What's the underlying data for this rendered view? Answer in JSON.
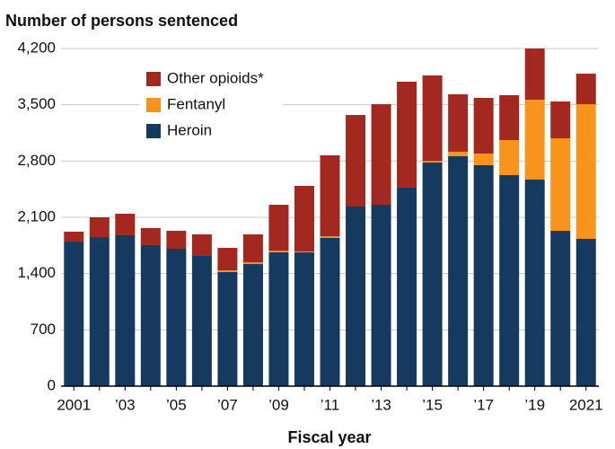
{
  "chart_data": {
    "type": "stacked_bar",
    "title": "Number of persons sentenced",
    "x_label": "Fiscal year",
    "categories": [
      "2001",
      null,
      "’03",
      null,
      "’05",
      null,
      "’07",
      null,
      "’09",
      null,
      "’11",
      null,
      "’13",
      null,
      "’15",
      null,
      "’17",
      null,
      "’19",
      null,
      "2021"
    ],
    "series": [
      {
        "name": "Heroin",
        "color": "#163a5f",
        "values": [
          1798,
          1854,
          1877,
          1754,
          1709,
          1620,
          1419,
          1519,
          1664,
          1664,
          1843,
          2234,
          2256,
          2469,
          2781,
          2860,
          2748,
          2625,
          2569,
          1932,
          1832
        ]
      },
      {
        "name": "Fentanyl",
        "color": "#f7941d",
        "values": [
          0,
          0,
          0,
          0,
          0,
          0,
          20,
          20,
          20,
          10,
          20,
          0,
          0,
          0,
          20,
          56,
          145,
          436,
          994,
          1151,
          1675
        ]
      },
      {
        "name": "Other opioids*",
        "color": "#a3281f",
        "values": [
          123,
          246,
          268,
          212,
          223,
          268,
          281,
          349,
          572,
          817,
          1008,
          1139,
          1251,
          1318,
          1064,
          714,
          693,
          558,
          637,
          458,
          380
        ]
      }
    ],
    "ylim": [
      0,
      4200
    ],
    "yticks": [
      0,
      700,
      {
        "value": 1400,
        "label": "1,400"
      },
      {
        "value": 2100,
        "label": "2,100"
      },
      {
        "value": 2800,
        "label": "2,800"
      },
      {
        "value": 3500,
        "label": "3,500"
      },
      {
        "value": 4200,
        "label": "4,200"
      }
    ],
    "grid": true
  }
}
